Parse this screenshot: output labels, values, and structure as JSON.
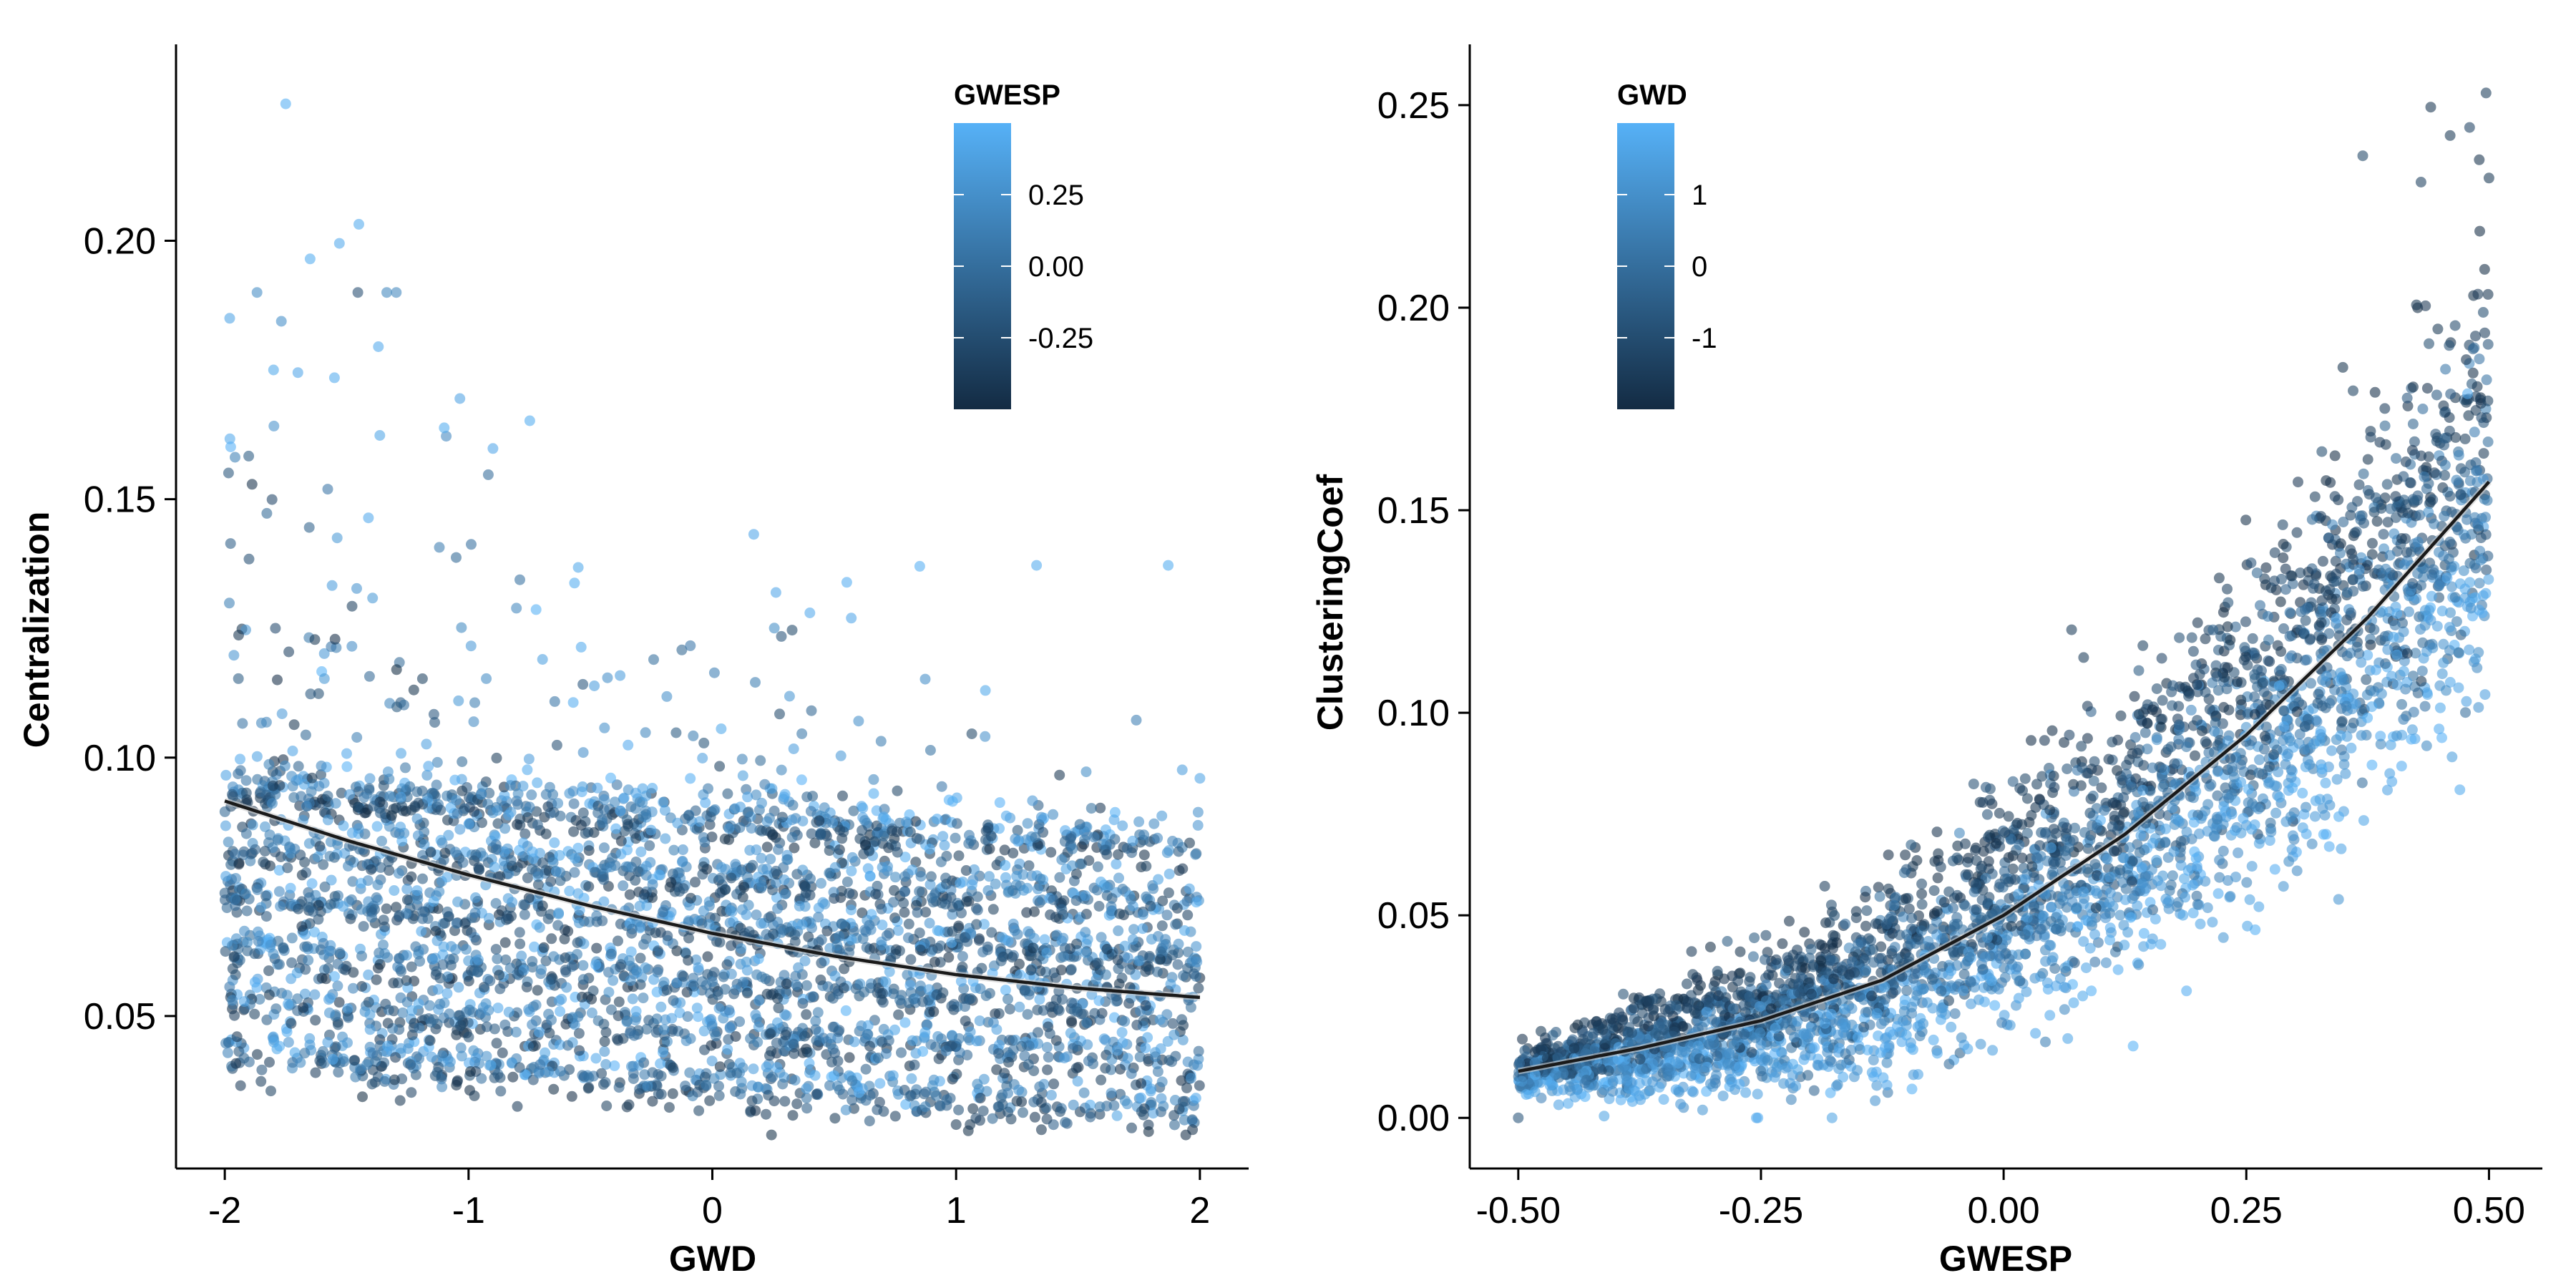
{
  "chart_data": [
    {
      "type": "scatter",
      "xlabel": "GWD",
      "ylabel": "Centralization",
      "xlim": [
        -2.2,
        2.2
      ],
      "ylim": [
        0.0205,
        0.238
      ],
      "x_ticks": [
        -2,
        -1,
        0,
        1,
        2
      ],
      "x_tick_labels": [
        "-2",
        "-1",
        "0",
        "1",
        "2"
      ],
      "y_ticks": [
        0.05,
        0.1,
        0.15,
        0.2
      ],
      "y_tick_labels": [
        "0.05",
        "0.10",
        "0.15",
        "0.20"
      ],
      "grid": false,
      "color_variable": "GWESP",
      "color_range": [
        -0.5,
        0.5
      ],
      "colors": {
        "low": "#132b43",
        "high": "#56b1f7"
      },
      "legend": {
        "title": "GWESP",
        "placement": "top-right",
        "ticks": [
          0.25,
          0.0,
          -0.25
        ],
        "labels": [
          "0.25",
          "0.00",
          "-0.25"
        ]
      },
      "trend_line": {
        "x": [
          -2,
          -1.5,
          -1,
          -0.5,
          0,
          0.5,
          1,
          1.5,
          2
        ],
        "y": [
          0.0916,
          0.084,
          0.0773,
          0.0713,
          0.066,
          0.0616,
          0.058,
          0.0554,
          0.0536
        ]
      },
      "points_highlight": [
        {
          "x": -1.75,
          "y": 0.2265,
          "c": 0.48
        },
        {
          "x": -1.65,
          "y": 0.1965,
          "c": 0.46
        },
        {
          "x": -1.53,
          "y": 0.1995,
          "c": 0.44
        },
        {
          "x": -1.45,
          "y": 0.2032,
          "c": 0.45
        },
        {
          "x": -1.98,
          "y": 0.185,
          "c": 0.4
        },
        {
          "x": -1.37,
          "y": 0.1795,
          "c": 0.44
        },
        {
          "x": -1.8,
          "y": 0.175,
          "c": 0.43
        },
        {
          "x": -1.7,
          "y": 0.1745,
          "c": 0.42
        },
        {
          "x": -1.55,
          "y": 0.1735,
          "c": 0.45
        },
        {
          "x": -1.1,
          "y": 0.1638,
          "c": 0.46
        },
        {
          "x": -0.9,
          "y": 0.1598,
          "c": 0.42
        },
        {
          "x": -0.55,
          "y": 0.1368,
          "c": 0.43
        },
        {
          "x": 0.17,
          "y": 0.1432,
          "c": 0.42
        },
        {
          "x": 1.33,
          "y": 0.1372,
          "c": 0.45
        },
        {
          "x": 1.87,
          "y": 0.1372,
          "c": 0.46
        },
        {
          "x": 0.4,
          "y": 0.128,
          "c": 0.44
        },
        {
          "x": 0.57,
          "y": 0.127,
          "c": 0.42
        },
        {
          "x": 1.12,
          "y": 0.113,
          "c": 0.43
        },
        {
          "x": 2.0,
          "y": 0.096,
          "c": 0.4
        },
        {
          "x": -0.8,
          "y": 0.0325,
          "c": -0.38
        },
        {
          "x": 0.22,
          "y": 0.031,
          "c": -0.35
        },
        {
          "x": 1.0,
          "y": 0.029,
          "c": -0.4
        },
        {
          "x": 1.35,
          "y": 0.028,
          "c": -0.42
        },
        {
          "x": 1.97,
          "y": 0.028,
          "c": -0.45
        },
        {
          "x": -1.95,
          "y": 0.046,
          "c": -0.41
        },
        {
          "x": -1.3,
          "y": 0.042,
          "c": -0.38
        }
      ]
    },
    {
      "type": "scatter",
      "xlabel": "GWESP",
      "ylabel": "ClusteringCoef",
      "xlim": [
        -0.55,
        0.555
      ],
      "ylim": [
        -0.0125,
        0.265
      ],
      "x_ticks": [
        -0.5,
        -0.25,
        0.0,
        0.25,
        0.5
      ],
      "x_tick_labels": [
        "-0.50",
        "-0.25",
        "0.00",
        "0.25",
        "0.50"
      ],
      "y_ticks": [
        0.0,
        0.05,
        0.1,
        0.15,
        0.2,
        0.25
      ],
      "y_tick_labels": [
        "0.00",
        "0.05",
        "0.10",
        "0.15",
        "0.20",
        "0.25"
      ],
      "grid": false,
      "color_variable": "GWD",
      "color_range": [
        -2,
        2
      ],
      "colors": {
        "low": "#132b43",
        "high": "#56b1f7"
      },
      "legend": {
        "title": "GWD",
        "placement": "top-left",
        "ticks": [
          1,
          0,
          -1
        ],
        "labels": [
          "1",
          "0",
          "-1"
        ]
      },
      "trend_line": {
        "x": [
          -0.5,
          -0.375,
          -0.25,
          -0.125,
          0.0,
          0.125,
          0.25,
          0.375,
          0.5
        ],
        "y": [
          0.0115,
          0.0172,
          0.024,
          0.034,
          0.05,
          0.07,
          0.0945,
          0.1235,
          0.157
        ]
      },
      "points_highlight": [
        {
          "x": 0.44,
          "y": 0.2495,
          "c": -1.7
        },
        {
          "x": 0.497,
          "y": 0.253,
          "c": -1.5
        },
        {
          "x": 0.48,
          "y": 0.2445,
          "c": -1.3
        },
        {
          "x": 0.46,
          "y": 0.2425,
          "c": -1.6
        },
        {
          "x": 0.37,
          "y": 0.2375,
          "c": -1.2
        },
        {
          "x": 0.49,
          "y": 0.2365,
          "c": -1.8
        },
        {
          "x": 0.43,
          "y": 0.231,
          "c": -1.4
        },
        {
          "x": 0.5,
          "y": 0.232,
          "c": -1.6
        },
        {
          "x": 0.07,
          "y": 0.1205,
          "c": -1.5
        },
        {
          "x": -0.5,
          "y": 0.0,
          "c": -0.8
        },
        {
          "x": 0.47,
          "y": 0.081,
          "c": 1.8
        },
        {
          "x": 0.4,
          "y": 0.083,
          "c": 1.7
        }
      ]
    }
  ]
}
